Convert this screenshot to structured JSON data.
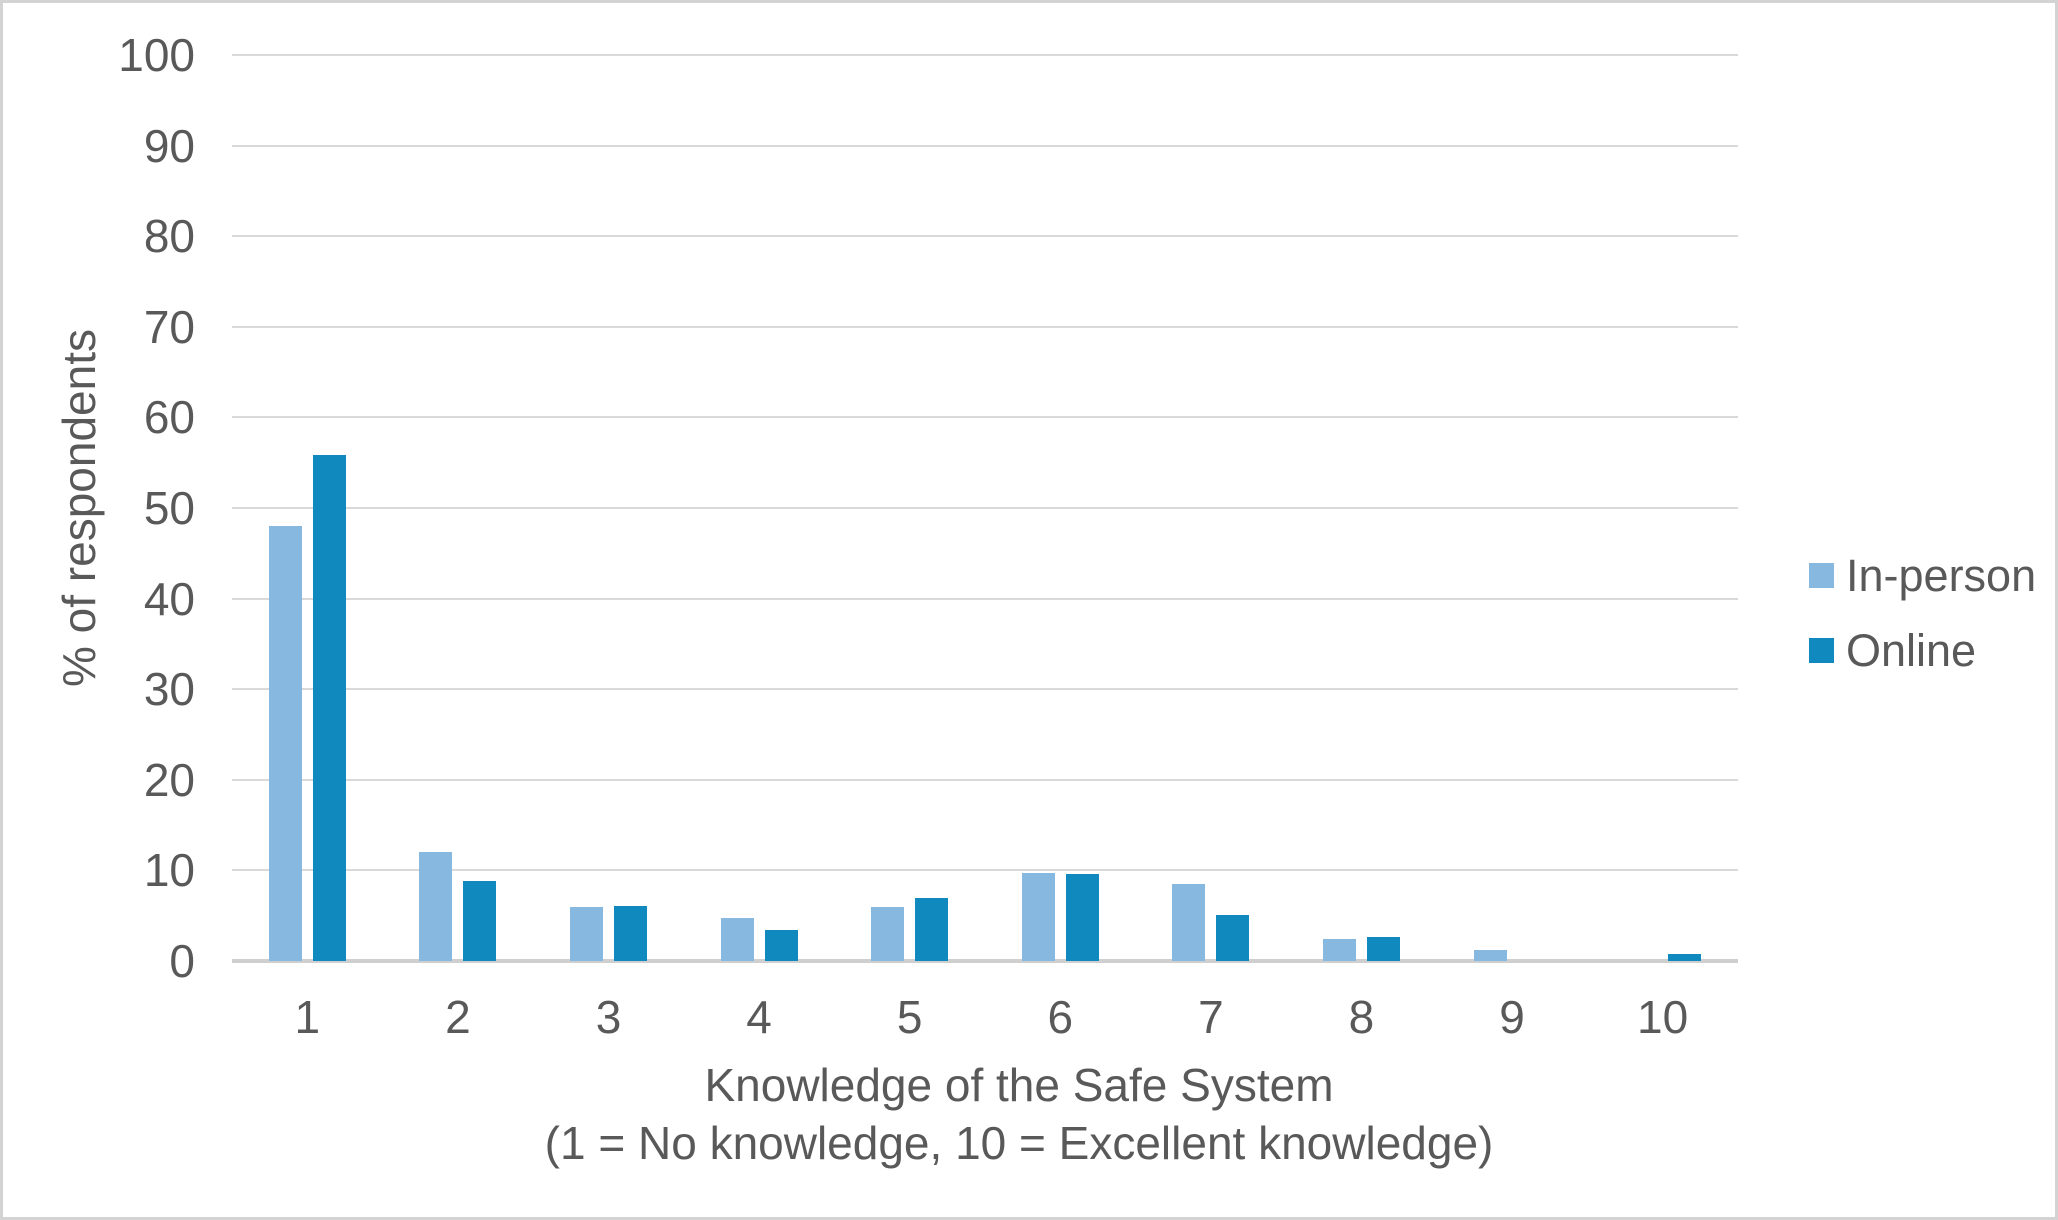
{
  "chart_data": {
    "type": "bar",
    "title": "",
    "categories": [
      "1",
      "2",
      "3",
      "4",
      "5",
      "6",
      "7",
      "8",
      "9",
      "10"
    ],
    "series": [
      {
        "name": "In-person",
        "color": "#87B8DF",
        "values": [
          48,
          12,
          6,
          4.8,
          6,
          9.7,
          8.5,
          2.4,
          1.2,
          0
        ]
      },
      {
        "name": "Online",
        "color": "#1089BE",
        "values": [
          55.8,
          8.8,
          6.1,
          3.4,
          7,
          9.6,
          5.1,
          2.6,
          0,
          0.8
        ]
      }
    ],
    "xlabel_line1": "Knowledge of the Safe System",
    "xlabel_line2": "(1 = No knowledge, 10 = Excellent knowledge)",
    "ylabel": "% of respondents",
    "ylim": [
      0,
      100
    ],
    "ytick_step": 10,
    "grid": "horizontal",
    "legend_position": "right"
  },
  "colors": {
    "text": "#595959",
    "gridline": "#D9D9D9",
    "axis_line": "#CFCFCF",
    "frame_border": "#D3D3D3",
    "background": "#FFFFFF",
    "series_in_person": "#87B8DF",
    "series_online": "#1089BE"
  }
}
